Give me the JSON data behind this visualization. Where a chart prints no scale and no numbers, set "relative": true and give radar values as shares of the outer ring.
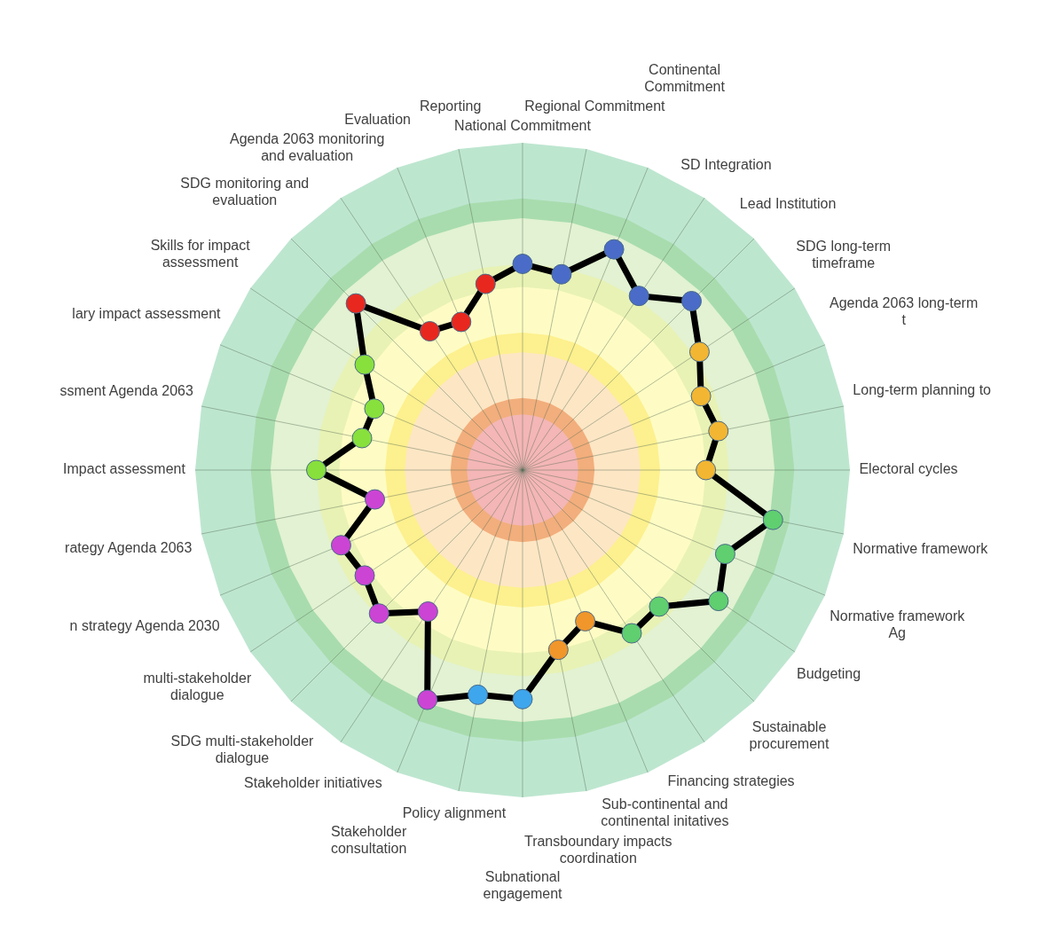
{
  "chart_data": {
    "type": "radar",
    "relative": true,
    "grid": true,
    "legend": false,
    "marker": "circle",
    "categories": [
      "National Commitment",
      "Regional Commitment",
      "Continental Commitment",
      "SD Integration",
      "Lead Institution",
      "SDG long-term timeframe",
      "Agenda 2063 long-term t",
      "Long-term planning to",
      "Electoral cycles",
      "Normative framework",
      "Normative framework Ag",
      "Budgeting",
      "Sustainable procurement",
      "Financing strategies",
      "Sub-continental and continental initatives",
      "Transboundary impacts coordination",
      "Subnational engagement",
      "Policy alignment",
      "Stakeholder consultation",
      "Stakeholder initiatives",
      "SDG multi-stakeholder dialogue",
      "multi-stakeholder dialogue",
      "n strategy Agenda 2030",
      "rategy Agenda 2063",
      "Impact assessment",
      "ssment Agenda 2063",
      "lary impact assessment",
      "Skills for impact assessment",
      "SDG monitoring and evaluation",
      "Agenda 2063 monitoring and evaluation",
      "Evaluation",
      "Reporting"
    ],
    "series": [
      {
        "color": "#000000",
        "values": [
          0.63,
          0.61,
          0.73,
          0.64,
          0.73,
          0.65,
          0.59,
          0.61,
          0.56,
          0.78,
          0.67,
          0.72,
          0.59,
          0.6,
          0.5,
          0.56,
          0.7,
          0.7,
          0.76,
          0.52,
          0.62,
          0.58,
          0.6,
          0.46,
          0.63,
          0.5,
          0.49,
          0.58,
          0.72,
          0.51,
          0.49,
          0.58
        ],
        "colors": [
          "#4a6cc8",
          "#4a6cc8",
          "#4a6cc8",
          "#4a6cc8",
          "#4a6cc8",
          "#f2b632",
          "#f2b632",
          "#f2b632",
          "#f2b632",
          "#5fcf6f",
          "#5fcf6f",
          "#5fcf6f",
          "#5fcf6f",
          "#5fcf6f",
          "#f0962a",
          "#f0962a",
          "#3ea6ec",
          "#3ea6ec",
          "#cc44d4",
          "#cc44d4",
          "#cc44d4",
          "#cc44d4",
          "#cc44d4",
          "#cc44d4",
          "#88e03c",
          "#88e03c",
          "#88e03c",
          "#88e03c",
          "#e8281e",
          "#e8281e",
          "#e8281e",
          "#e8281e"
        ]
      }
    ]
  }
}
